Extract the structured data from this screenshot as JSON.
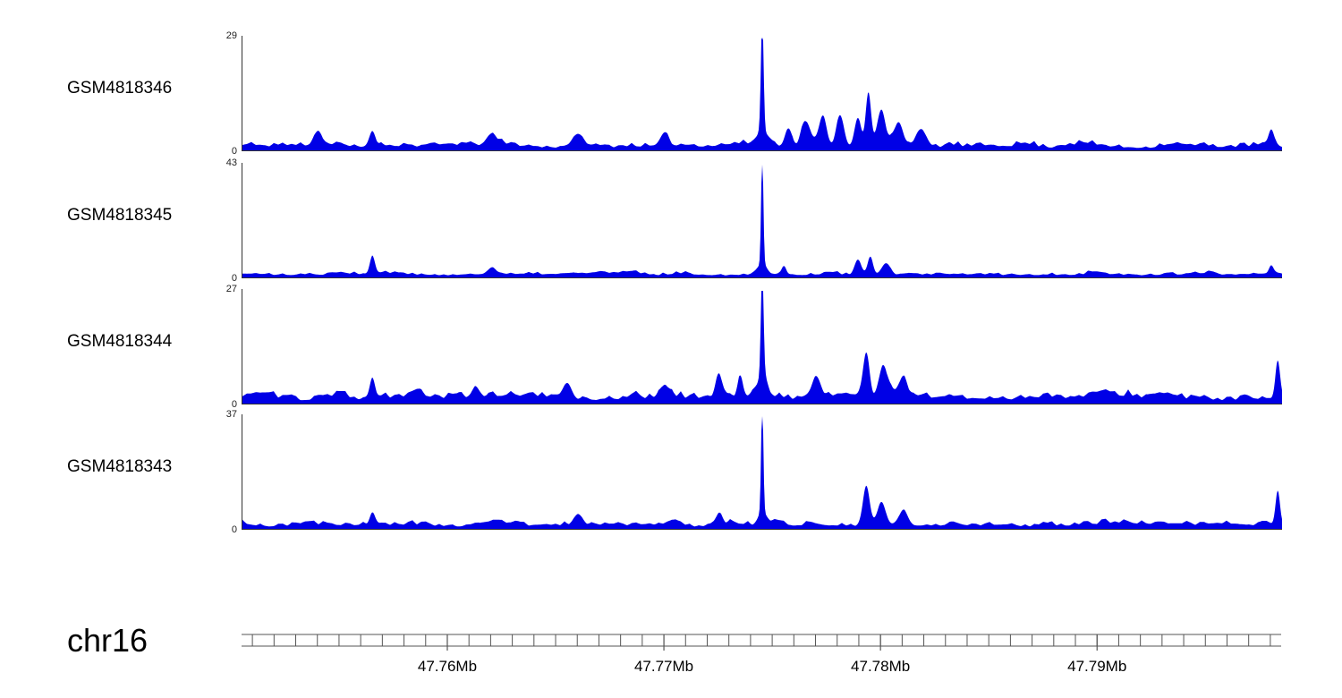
{
  "chart_data": {
    "type": "area",
    "title": "",
    "chromosome": "chr16",
    "x_unit": "Mb",
    "xlim": [
      47.7505,
      47.7985
    ],
    "minor_tick_step_mb": 0.001,
    "x_ticks": [
      {
        "pos": 47.76,
        "label": "47.76Mb"
      },
      {
        "pos": 47.77,
        "label": "47.77Mb"
      },
      {
        "pos": 47.78,
        "label": "47.78Mb"
      },
      {
        "pos": 47.79,
        "label": "47.79Mb"
      }
    ],
    "signal_color": "#0000e6",
    "axis_color": "#555555",
    "baseline_color": "#333333",
    "tracks": [
      {
        "name": "GSM4818346",
        "ylim": [
          0,
          29
        ],
        "y_top_label": "29",
        "y_bottom_label": "0",
        "seed": 11,
        "baseline": 0.02,
        "noise_amp": 0.09,
        "peaks": [
          [
            47.7745,
            1.0,
            6e-05
          ],
          [
            47.7745,
            0.12,
            0.00025
          ],
          [
            47.7757,
            0.16,
            0.00015
          ],
          [
            47.7765,
            0.22,
            0.0002
          ],
          [
            47.7773,
            0.25,
            0.00018
          ],
          [
            47.7781,
            0.28,
            0.00018
          ],
          [
            47.7789,
            0.25,
            0.00015
          ],
          [
            47.7794,
            0.45,
            0.00012
          ],
          [
            47.78,
            0.28,
            0.00018
          ],
          [
            47.7808,
            0.2,
            0.0002
          ],
          [
            47.7818,
            0.14,
            0.00025
          ],
          [
            47.7565,
            0.13,
            0.00015
          ],
          [
            47.754,
            0.1,
            0.0002
          ],
          [
            47.762,
            0.08,
            0.0003
          ],
          [
            47.766,
            0.09,
            0.0003
          ],
          [
            47.77,
            0.1,
            0.0002
          ],
          [
            47.798,
            0.12,
            0.00012
          ]
        ]
      },
      {
        "name": "GSM4818345",
        "ylim": [
          0,
          43
        ],
        "y_top_label": "43",
        "y_bottom_label": "0",
        "seed": 22,
        "baseline": 0.018,
        "noise_amp": 0.06,
        "peaks": [
          [
            47.7745,
            1.0,
            5e-05
          ],
          [
            47.7745,
            0.08,
            0.0002
          ],
          [
            47.7565,
            0.14,
            0.00012
          ],
          [
            47.7755,
            0.08,
            0.0001
          ],
          [
            47.7789,
            0.13,
            0.00015
          ],
          [
            47.7795,
            0.15,
            0.00012
          ],
          [
            47.7802,
            0.1,
            0.0002
          ],
          [
            47.762,
            0.06,
            0.0002
          ],
          [
            47.798,
            0.07,
            0.0001
          ]
        ]
      },
      {
        "name": "GSM4818344",
        "ylim": [
          0,
          27
        ],
        "y_top_label": "27",
        "y_bottom_label": "0",
        "seed": 33,
        "baseline": 0.03,
        "noise_amp": 0.11,
        "peaks": [
          [
            47.7745,
            1.0,
            6e-05
          ],
          [
            47.7745,
            0.15,
            0.00025
          ],
          [
            47.7793,
            0.4,
            0.00015
          ],
          [
            47.7801,
            0.25,
            0.0002
          ],
          [
            47.781,
            0.15,
            0.0002
          ],
          [
            47.777,
            0.15,
            0.0002
          ],
          [
            47.7725,
            0.2,
            0.00015
          ],
          [
            47.7735,
            0.16,
            0.00012
          ],
          [
            47.77,
            0.12,
            0.0002
          ],
          [
            47.7655,
            0.13,
            0.0002
          ],
          [
            47.7613,
            0.1,
            0.0002
          ],
          [
            47.7565,
            0.15,
            0.00012
          ],
          [
            47.7983,
            0.3,
            0.0001
          ]
        ]
      },
      {
        "name": "GSM4818343",
        "ylim": [
          0,
          37
        ],
        "y_top_label": "37",
        "y_bottom_label": "0",
        "seed": 44,
        "baseline": 0.02,
        "noise_amp": 0.08,
        "peaks": [
          [
            47.7745,
            1.0,
            5e-05
          ],
          [
            47.7745,
            0.1,
            0.0002
          ],
          [
            47.7793,
            0.33,
            0.00015
          ],
          [
            47.78,
            0.2,
            0.00018
          ],
          [
            47.781,
            0.12,
            0.0002
          ],
          [
            47.7725,
            0.1,
            0.00015
          ],
          [
            47.766,
            0.08,
            0.0002
          ],
          [
            47.7565,
            0.11,
            0.00012
          ],
          [
            47.7983,
            0.3,
            0.0001
          ]
        ]
      }
    ]
  },
  "genome_axis": {
    "chromosome_label": "chr16"
  }
}
